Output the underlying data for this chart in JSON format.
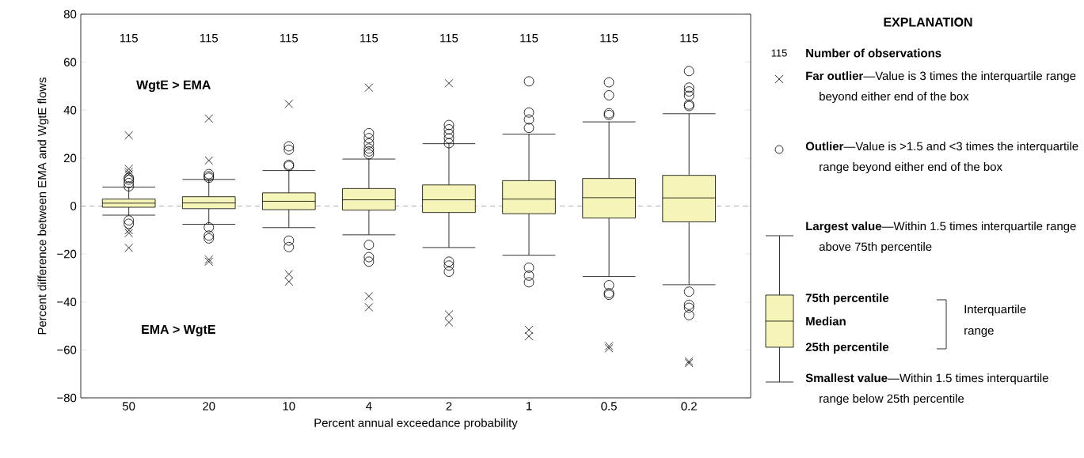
{
  "chart_data": {
    "type": "box",
    "xlabel": "Percent annual exceedance probability",
    "ylabel": "Percent difference between EMA and WgtE flows",
    "legend_title": "EXPLANATION",
    "categories": [
      "50",
      "20",
      "10",
      "4",
      "2",
      "1",
      "0.5",
      "0.2"
    ],
    "marker": "circle",
    "series": [
      {
        "type": "box",
        "color": "#f5f5b9",
        "boxes": [
          {
            "low": -3.8,
            "q1": -0.5,
            "median": 1.2,
            "q3": 2.9,
            "high": 7.9,
            "outliers": [
              8.2,
              9.6,
              11,
              11.8,
              -6,
              -7.4
            ]
          },
          {
            "low": -7.6,
            "q1": -1.1,
            "median": 1.3,
            "q3": 3.9,
            "high": 11.1,
            "outliers": [
              11.8,
              12.4,
              13.3,
              -8.9,
              -12.3,
              -13.5
            ]
          },
          {
            "low": -9,
            "q1": -1.5,
            "median": 2,
            "q3": 5.5,
            "high": 14.8,
            "outliers": [
              16.7,
              17.2,
              23.5,
              24.9,
              -14.4,
              -17.1
            ]
          },
          {
            "low": -12,
            "q1": -1.7,
            "median": 2.6,
            "q3": 7.3,
            "high": 19.6,
            "outliers": [
              21.6,
              22.8,
              24,
              26.1,
              28.3,
              30.4,
              -16.2,
              -21.3,
              -23.2
            ]
          },
          {
            "low": -17.3,
            "q1": -2.7,
            "median": 2.6,
            "q3": 8.8,
            "high": 26,
            "outliers": [
              26.2,
              28.2,
              30.1,
              32,
              33.8,
              -23.2,
              -24.8,
              -27.4
            ]
          },
          {
            "low": -20.5,
            "q1": -3.2,
            "median": 2.9,
            "q3": 10.6,
            "high": 30,
            "outliers": [
              32.6,
              36.1,
              39,
              52,
              -25.7,
              -29,
              -31.8
            ]
          },
          {
            "low": -29.4,
            "q1": -5,
            "median": 3.5,
            "q3": 11.5,
            "high": 35.1,
            "outliers": [
              38,
              38.7,
              46.2,
              51.6,
              -33,
              -36.3,
              -37
            ]
          },
          {
            "low": -32.8,
            "q1": -6.6,
            "median": 3.4,
            "q3": 12.8,
            "high": 38.5,
            "outliers": [
              41.7,
              42.3,
              46,
              47.8,
              49.4,
              56.3,
              -35.7,
              -41.2,
              -42.4,
              -45.5
            ]
          }
        ]
      },
      {
        "type": "scatter",
        "color": "#000000",
        "marker": "cross",
        "x": [
          "50",
          "50",
          "50",
          "50",
          "50",
          "50",
          "50",
          "20",
          "20",
          "20",
          "20",
          "10",
          "10",
          "10",
          "4",
          "4",
          "4",
          "2",
          "2",
          "2",
          "1",
          "1",
          "0.5",
          "0.5",
          "0.2",
          "0.2"
        ],
        "values": [
          29.5,
          15.5,
          14.3,
          13.3,
          -10.1,
          -11.3,
          -17.4,
          36.5,
          19,
          -22.3,
          -23.2,
          42.6,
          -28.4,
          -31.5,
          49.4,
          -37.6,
          -42.2,
          51.2,
          -45.2,
          -48.5,
          -51.6,
          -54.3,
          -58.4,
          -59.3,
          -64.8,
          -65.5
        ]
      }
    ],
    "ylim": [
      -80,
      80
    ],
    "yticks": [
      {
        "value": -80,
        "label": "−80"
      },
      {
        "value": -60,
        "label": "−60"
      },
      {
        "value": -40,
        "label": "−40"
      },
      {
        "value": -20,
        "label": "−20"
      },
      0,
      20,
      40,
      60,
      80
    ],
    "ref_lines": [
      {
        "axis": "y",
        "value": 0,
        "color": "#999999",
        "line_style": "dashed"
      }
    ],
    "annotations": [
      "WgtE > EMA",
      "EMA > WgtE",
      "115",
      "115",
      "115",
      "115",
      "115",
      "115",
      "115",
      "115",
      "115",
      "Number of observations",
      "**Far outlier**—Value is 3 times the interquartile range beyond either end of the box",
      "**Outlier**—Value is >1.5 and <3 times the interquartile range beyond either end of the box",
      "**Largest value**—Within 1.5 times interquartile range above 75th percentile",
      "75th percentile",
      "Median",
      "25th percentile",
      "Interquartile range",
      "**Smallest value**—Within 1.5 times interquartile range below 25th percentile"
    ]
  }
}
